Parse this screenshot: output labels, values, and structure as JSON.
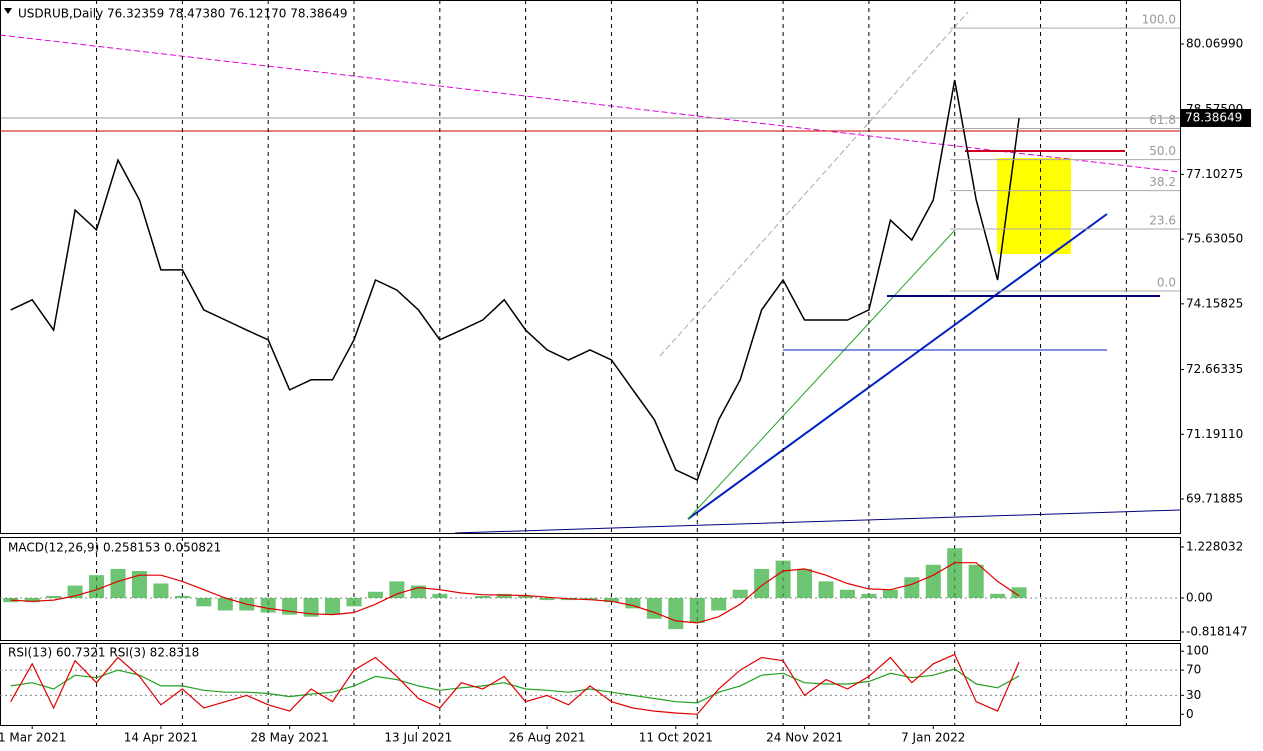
{
  "chart_data": [
    {
      "type": "line",
      "title": "USDRUB,Daily  76.32359 78.47380 76.12170 78.38649",
      "categories": [
        null,
        "1 Mar 2021",
        null,
        null,
        null,
        null,
        null,
        "14 Apr 2021",
        null,
        null,
        null,
        null,
        null,
        "28 May 2021",
        null,
        null,
        null,
        null,
        null,
        "13 Jul 2021",
        null,
        null,
        null,
        null,
        null,
        "26 Aug 2021",
        null,
        null,
        null,
        null,
        null,
        "11 Oct 2021",
        null,
        null,
        null,
        null,
        null,
        "24 Nov 2021",
        null,
        null,
        null,
        null,
        null,
        "7 Jan 2022",
        null,
        null,
        null,
        null,
        null,
        null,
        null,
        null,
        null,
        null,
        null
      ],
      "series": [
        {
          "color": "#000000",
          "values": [
            74.02,
            74.25,
            73.56,
            76.29,
            75.84,
            77.43,
            76.52,
            74.93,
            74.93,
            74.02,
            73.79,
            73.56,
            73.34,
            72.2,
            72.43,
            72.43,
            73.34,
            74.7,
            74.47,
            74.02,
            73.34,
            73.56,
            73.79,
            74.25,
            73.56,
            73.11,
            72.88,
            73.11,
            72.88,
            72.2,
            71.52,
            70.38,
            70.15,
            71.52,
            72.43,
            74.02,
            74.7,
            73.79,
            73.79,
            73.79,
            74.02,
            76.06,
            75.61,
            76.52,
            79.25,
            76.52,
            74.7,
            78.38649,
            null,
            null,
            null,
            null,
            null,
            null,
            null
          ]
        }
      ],
      "last_price": 78.38649,
      "ylim": [
        68.945,
        81.07
      ],
      "yticks": [
        {
          "value": 80.0699,
          "label": "80.06990"
        },
        {
          "value": 78.575,
          "label": "78.57500"
        },
        77.10275,
        {
          "value": 75.6305,
          "label": "75.63050"
        },
        74.15825,
        72.66335,
        {
          "value": 71.1911,
          "label": "71.19110"
        },
        69.71885
      ],
      "fibonacci": {
        "low": 74.45,
        "high": 80.43,
        "levels": [
          {
            "value": 100,
            "label": "100.0"
          },
          {
            "value": 61.8,
            "label": "61.8"
          },
          {
            "value": 50,
            "label": "50.0"
          },
          {
            "value": 38.2,
            "label": "38.2"
          },
          {
            "value": 23.6,
            "label": "23.6"
          },
          {
            "value": 0,
            "label": "0.0"
          }
        ]
      }
    },
    {
      "type": "macd",
      "title": "MACD(12,26,9) 0.258153 0.050821",
      "series": [
        {
          "color": "#3cb043",
          "values": [
            -0.1,
            -0.1,
            0.05,
            0.3,
            0.55,
            0.7,
            0.65,
            0.35,
            0.05,
            -0.2,
            -0.3,
            -0.3,
            -0.35,
            -0.4,
            -0.45,
            -0.4,
            -0.2,
            0.15,
            0.4,
            0.3,
            0.1,
            0.0,
            0.05,
            0.1,
            0.05,
            -0.05,
            -0.05,
            -0.05,
            -0.1,
            -0.25,
            -0.5,
            -0.75,
            -0.6,
            -0.3,
            0.2,
            0.7,
            0.9,
            0.7,
            0.4,
            0.2,
            0.1,
            0.2,
            0.5,
            0.8,
            1.2,
            0.8,
            0.1,
            0.258153,
            null,
            null,
            null,
            null,
            null,
            null,
            null
          ]
        },
        {
          "color": "#e00000",
          "values": [
            -0.05,
            -0.08,
            -0.05,
            0.05,
            0.2,
            0.4,
            0.55,
            0.55,
            0.4,
            0.2,
            0,
            -0.15,
            -0.25,
            -0.32,
            -0.38,
            -0.4,
            -0.35,
            -0.15,
            0.1,
            0.25,
            0.2,
            0.12,
            0.08,
            0.07,
            0.06,
            0.02,
            -0.02,
            -0.04,
            -0.08,
            -0.18,
            -0.35,
            -0.55,
            -0.6,
            -0.45,
            -0.15,
            0.3,
            0.65,
            0.7,
            0.55,
            0.35,
            0.22,
            0.2,
            0.33,
            0.55,
            0.85,
            0.85,
            0.4,
            0.050821,
            null,
            null,
            null,
            null,
            null,
            null,
            null
          ]
        }
      ],
      "ylim": [
        -1.011,
        1.469
      ],
      "yticks": [
        1.228032,
        {
          "value": 0,
          "label": "0.00"
        },
        -0.818147
      ]
    },
    {
      "type": "rsi",
      "title": "RSI(13) 60.7321  RSI(3) 82.8318",
      "series": [
        {
          "color": "#22a022",
          "values": [
            45,
            50,
            40,
            62,
            58,
            70,
            62,
            45,
            45,
            38,
            35,
            35,
            33,
            28,
            32,
            35,
            45,
            60,
            55,
            45,
            38,
            42,
            45,
            50,
            40,
            38,
            35,
            40,
            35,
            30,
            25,
            20,
            18,
            35,
            45,
            62,
            65,
            50,
            48,
            48,
            52,
            65,
            58,
            62,
            72,
            48,
            42,
            60.7321,
            null,
            null,
            null,
            null,
            null,
            null,
            null
          ]
        },
        {
          "color": "#e00000",
          "values": [
            20,
            80,
            10,
            85,
            50,
            90,
            60,
            15,
            40,
            10,
            20,
            30,
            15,
            5,
            40,
            20,
            70,
            90,
            60,
            25,
            10,
            50,
            40,
            60,
            20,
            30,
            15,
            45,
            20,
            10,
            5,
            2,
            0,
            40,
            70,
            90,
            85,
            30,
            55,
            40,
            60,
            90,
            50,
            80,
            95,
            20,
            5,
            82.8318,
            null,
            null,
            null,
            null,
            null,
            null,
            null
          ]
        }
      ],
      "ylim": [
        -17,
        113
      ],
      "yticks": [
        100,
        70,
        30,
        0
      ]
    }
  ]
}
